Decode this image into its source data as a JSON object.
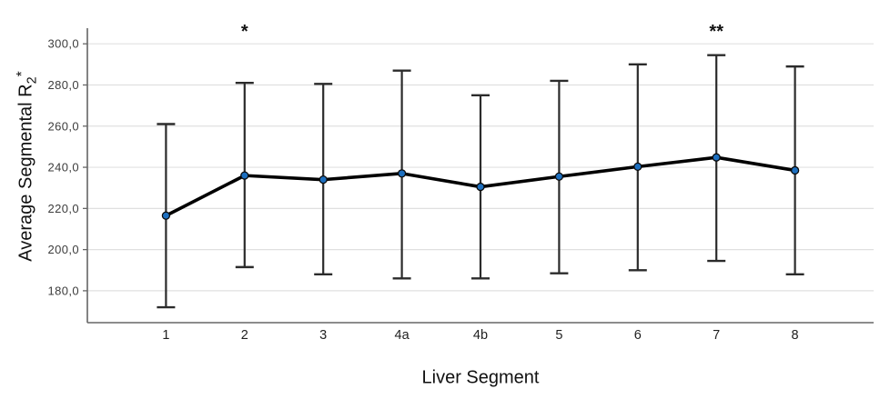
{
  "chart_data": {
    "type": "line",
    "title": "",
    "xlabel": "Liver Segment",
    "ylabel": "Average Segmental R2*",
    "ylabel_parts": {
      "main": "Average Segmental R",
      "sub": "2",
      "sup": "*"
    },
    "categories": [
      "1",
      "2",
      "3",
      "4a",
      "4b",
      "5",
      "6",
      "7",
      "8"
    ],
    "series": [
      {
        "name": "Average Segmental R2*",
        "means": [
          216.5,
          236.0,
          234.0,
          237.0,
          230.5,
          235.5,
          240.3,
          244.8,
          238.5
        ],
        "error_low": [
          172.0,
          191.5,
          188.0,
          186.0,
          186.0,
          188.5,
          190.0,
          194.5,
          188.0
        ],
        "error_high": [
          261.0,
          281.0,
          280.5,
          287.0,
          275.0,
          282.0,
          290.0,
          294.5,
          289.0
        ]
      }
    ],
    "annotations": [
      {
        "category": "2",
        "text": "*"
      },
      {
        "category": "7",
        "text": "**"
      }
    ],
    "yticks": [
      {
        "value": 300,
        "label": "300,0"
      },
      {
        "value": 280,
        "label": "280,0"
      },
      {
        "value": 260,
        "label": "260,0"
      },
      {
        "value": 240,
        "label": "240,0"
      },
      {
        "value": 220,
        "label": "220,0"
      },
      {
        "value": 200,
        "label": "200,0"
      },
      {
        "value": 180,
        "label": "180,0"
      }
    ],
    "ylim": [
      164.5,
      307.6
    ],
    "grid": "horizontal",
    "legend": "none",
    "colors": {
      "line": "#000000",
      "marker_fill": "#1d6fbf",
      "marker_stroke": "#0a0a0a",
      "error_bar": "#2b2b2b",
      "grid_line": "#e0e0e0",
      "axis_line": "#666666",
      "tick_text": "#3d3d3d",
      "title_text": "#111111"
    }
  }
}
